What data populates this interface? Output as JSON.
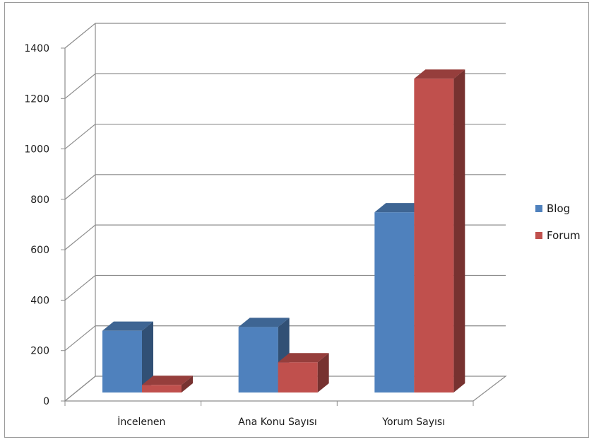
{
  "chart_data": {
    "type": "bar",
    "style": "3d-clustered-column",
    "categories": [
      "İncelenen",
      "Ana Konu Sayısı",
      "Yorum Sayısı"
    ],
    "series": [
      {
        "name": "Blog",
        "values": [
          245,
          260,
          715
        ],
        "color": "#4f81bd"
      },
      {
        "name": "Forum",
        "values": [
          30,
          120,
          1245
        ],
        "color": "#c0504d"
      }
    ],
    "title": "",
    "xlabel": "",
    "ylabel": "",
    "ylim": [
      0,
      1400
    ],
    "yticks": [
      0,
      200,
      400,
      600,
      800,
      1000,
      1200,
      1400
    ],
    "grid": true,
    "legend": "right"
  }
}
